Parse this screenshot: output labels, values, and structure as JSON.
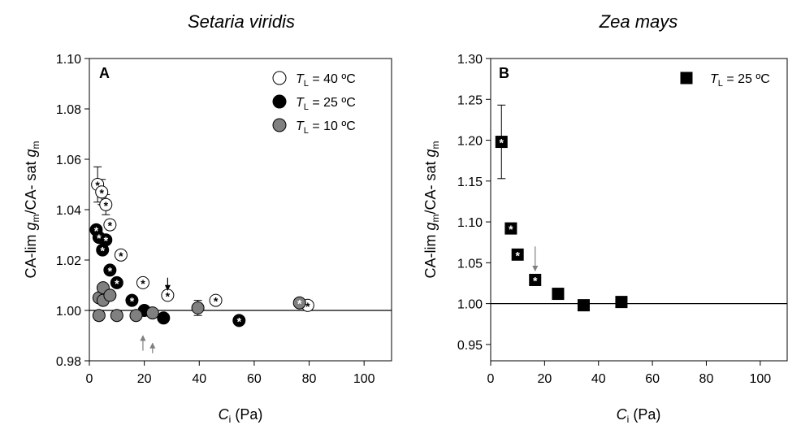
{
  "chart_data": [
    {
      "type": "scatter",
      "panel_label": "A",
      "title": "Setaria viridis",
      "xlabel": {
        "main": "C",
        "sub": "i",
        "rest": " (Pa)"
      },
      "ylabel": {
        "p1": "CA-lim ",
        "g1": "g",
        "s1": "m",
        "p2": "/CA- sat ",
        "g2": "g",
        "s2": "m"
      },
      "xlim": [
        0,
        110
      ],
      "ylim": [
        0.98,
        1.1
      ],
      "xticks": [
        0,
        20,
        40,
        60,
        80,
        100
      ],
      "xtick_labels": [
        "0",
        "20",
        "40",
        "60",
        "80",
        "100"
      ],
      "yticks": [
        0.98,
        1.0,
        1.02,
        1.04,
        1.06,
        1.08,
        1.1
      ],
      "ytick_labels": [
        "0.98",
        "1.00",
        "1.02",
        "1.04",
        "1.06",
        "1.08",
        "1.10"
      ],
      "reference_line": 1.0,
      "legend_position": "top-right",
      "series": [
        {
          "name": {
            "main": "T",
            "sub": "L",
            "rest": " = 40 ºC"
          },
          "fill": "#ffffff",
          "points": [
            {
              "x": 3.0,
              "y": 1.05,
              "err": 0.007,
              "star": true
            },
            {
              "x": 4.5,
              "y": 1.047,
              "err": 0.005,
              "star": true
            },
            {
              "x": 6.0,
              "y": 1.042,
              "err": 0.004,
              "star": true
            },
            {
              "x": 7.5,
              "y": 1.034,
              "err": 0.002,
              "star": true
            },
            {
              "x": 11.5,
              "y": 1.022,
              "err": 0,
              "star": true
            },
            {
              "x": 19.5,
              "y": 1.011,
              "err": 0,
              "star": true
            },
            {
              "x": 28.5,
              "y": 1.006,
              "err": 0,
              "star": true
            },
            {
              "x": 46.0,
              "y": 1.004,
              "err": 0,
              "star": true
            },
            {
              "x": 79.5,
              "y": 1.002,
              "err": 0,
              "star": true
            }
          ]
        },
        {
          "name": {
            "main": "T",
            "sub": "L",
            "rest": " = 25 ºC"
          },
          "fill": "#000000",
          "points": [
            {
              "x": 2.5,
              "y": 1.032,
              "err": 0,
              "star": true
            },
            {
              "x": 3.5,
              "y": 1.029,
              "err": 0,
              "star": true
            },
            {
              "x": 4.8,
              "y": 1.024,
              "err": 0,
              "star": true
            },
            {
              "x": 6.0,
              "y": 1.028,
              "err": 0,
              "star": true
            },
            {
              "x": 7.5,
              "y": 1.016,
              "err": 0,
              "star": true
            },
            {
              "x": 10.0,
              "y": 1.011,
              "err": 0,
              "star": true
            },
            {
              "x": 15.5,
              "y": 1.004,
              "err": 0,
              "star": true
            },
            {
              "x": 20.0,
              "y": 1.0,
              "err": 0,
              "star": false
            },
            {
              "x": 27.0,
              "y": 0.997,
              "err": 0,
              "star": false
            },
            {
              "x": 54.5,
              "y": 0.996,
              "err": 0,
              "star": true
            }
          ]
        },
        {
          "name": {
            "main": "T",
            "sub": "L",
            "rest": " = 10 ºC"
          },
          "fill": "#808080",
          "points": [
            {
              "x": 3.5,
              "y": 1.005,
              "err": 0,
              "star": false
            },
            {
              "x": 5.0,
              "y": 1.004,
              "err": 0,
              "star": false
            },
            {
              "x": 5.0,
              "y": 1.009,
              "err": 0,
              "star": false
            },
            {
              "x": 7.5,
              "y": 1.006,
              "err": 0,
              "star": false
            },
            {
              "x": 3.5,
              "y": 0.998,
              "err": 0.002,
              "star": false
            },
            {
              "x": 10.0,
              "y": 0.998,
              "err": 0,
              "star": false
            },
            {
              "x": 17.0,
              "y": 0.998,
              "err": 0,
              "star": false
            },
            {
              "x": 23.0,
              "y": 0.999,
              "err": 0,
              "star": false
            },
            {
              "x": 39.5,
              "y": 1.001,
              "err": 0.003,
              "star": false
            },
            {
              "x": 76.5,
              "y": 1.003,
              "err": 0,
              "star": true
            }
          ]
        }
      ],
      "arrows": [
        {
          "x": 28.5,
          "from_y": 1.013,
          "to_y": 1.008,
          "color": "#000000"
        },
        {
          "x": 19.5,
          "from_y": 0.984,
          "to_y": 0.99,
          "color": "#808080"
        },
        {
          "x": 23.0,
          "from_y": 0.983,
          "to_y": 0.987,
          "color": "#808080"
        }
      ]
    },
    {
      "type": "scatter",
      "panel_label": "B",
      "title": "Zea mays",
      "xlabel": {
        "main": "C",
        "sub": "i",
        "rest": " (Pa)"
      },
      "ylabel": {
        "p1": "CA-lim ",
        "g1": "g",
        "s1": "m",
        "p2": "/CA- sat ",
        "g2": "g",
        "s2": "m"
      },
      "xlim": [
        0,
        110
      ],
      "ylim": [
        0.93,
        1.3
      ],
      "xticks": [
        0,
        20,
        40,
        60,
        80,
        100
      ],
      "xtick_labels": [
        "0",
        "20",
        "40",
        "60",
        "80",
        "100"
      ],
      "yticks": [
        0.95,
        1.0,
        1.05,
        1.1,
        1.15,
        1.2,
        1.25,
        1.3
      ],
      "ytick_labels": [
        "0.95",
        "1.00",
        "1.05",
        "1.10",
        "1.15",
        "1.20",
        "1.25",
        "1.30"
      ],
      "reference_line": 1.0,
      "legend_position": "top-right",
      "series": [
        {
          "name": {
            "main": "T",
            "sub": "L",
            "rest": " = 25 ºC"
          },
          "fill": "#000000",
          "points": [
            {
              "x": 4.0,
              "y": 1.198,
              "err": 0.045,
              "star": true
            },
            {
              "x": 7.5,
              "y": 1.092,
              "err": 0,
              "star": true
            },
            {
              "x": 10.0,
              "y": 1.06,
              "err": 0,
              "star": true
            },
            {
              "x": 16.5,
              "y": 1.029,
              "err": 0,
              "star": true
            },
            {
              "x": 25.0,
              "y": 1.012,
              "err": 0,
              "star": false
            },
            {
              "x": 34.5,
              "y": 0.998,
              "err": 0,
              "star": false
            },
            {
              "x": 48.5,
              "y": 1.002,
              "err": 0,
              "star": false
            }
          ]
        }
      ],
      "arrows": [
        {
          "x": 16.5,
          "from_y": 1.07,
          "to_y": 1.04,
          "color": "#808080"
        }
      ]
    }
  ]
}
